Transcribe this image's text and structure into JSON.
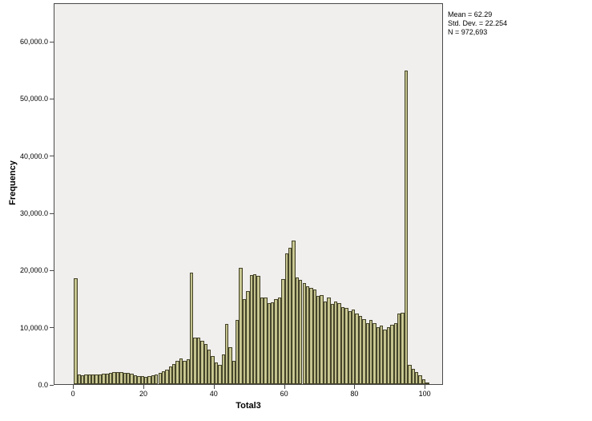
{
  "stats": {
    "lines": [
      "Mean = 62.29",
      "Std. Dev. = 22.254",
      "N = 972,693"
    ]
  },
  "chart_data": {
    "type": "bar",
    "title": "",
    "xlabel": "Total3",
    "ylabel": "Frequency",
    "xlim": [
      -5.5,
      105.2
    ],
    "ylim": [
      0,
      66730
    ],
    "grid": false,
    "legend": "none",
    "x_ticks": [
      {
        "value": 0,
        "label": "0"
      },
      {
        "value": 20,
        "label": "20"
      },
      {
        "value": 40,
        "label": "40"
      },
      {
        "value": 60,
        "label": "60"
      },
      {
        "value": 80,
        "label": "80"
      },
      {
        "value": 100,
        "label": "100"
      }
    ],
    "y_ticks": [
      {
        "value": 0,
        "label": "0.0"
      },
      {
        "value": 10000,
        "label": "10,000.0"
      },
      {
        "value": 20000,
        "label": "20,000.0"
      },
      {
        "value": 30000,
        "label": "30,000.0"
      },
      {
        "value": 40000,
        "label": "40,000.0"
      },
      {
        "value": 50000,
        "label": "50,000.0"
      },
      {
        "value": 60000,
        "label": "60,000.0"
      }
    ],
    "bin_start": 0,
    "bin_width": 1,
    "values": [
      18500,
      1650,
      1600,
      1650,
      1700,
      1700,
      1750,
      1700,
      1800,
      1850,
      2000,
      2100,
      2150,
      2100,
      2000,
      1900,
      1800,
      1500,
      1400,
      1350,
      1300,
      1350,
      1500,
      1700,
      1950,
      2200,
      2550,
      3050,
      3500,
      4100,
      4450,
      4100,
      4400,
      19500,
      8100,
      8100,
      7600,
      7000,
      6100,
      4900,
      3750,
      3350,
      5200,
      10500,
      6500,
      4000,
      11200,
      20300,
      14800,
      16200,
      19000,
      19200,
      18900,
      15100,
      15100,
      14200,
      14300,
      14800,
      15100,
      18400,
      22800,
      23900,
      25100,
      18700,
      18200,
      17600,
      17100,
      16800,
      16500,
      15400,
      15600,
      14450,
      15150,
      14000,
      14450,
      14200,
      13500,
      13300,
      12800,
      13050,
      12350,
      11900,
      11400,
      10700,
      11200,
      10700,
      9900,
      10200,
      9500,
      9900,
      10400,
      10700,
      12300,
      12500,
      54800,
      3300,
      2700,
      2100,
      1500,
      900,
      300
    ],
    "bar_fill": "#c6c58c",
    "bar_edge": "#45442a",
    "plot_background": "#f0efed"
  }
}
